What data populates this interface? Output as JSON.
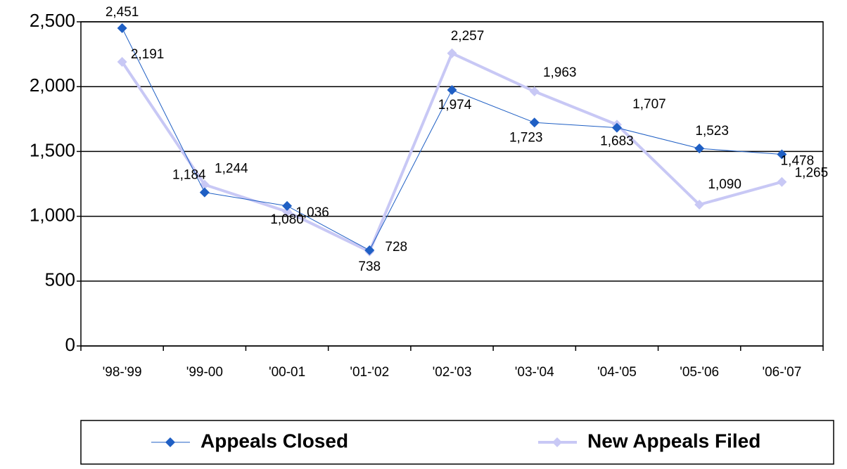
{
  "chart_data": {
    "type": "line",
    "categories": [
      "'98-'99",
      "'99-00",
      "'00-01",
      "'01-'02",
      "'02-'03",
      "'03-'04",
      "'04-'05",
      "'05-'06",
      "'06-'07"
    ],
    "series": [
      {
        "name": "Appeals Closed",
        "color": "#1f5fc4",
        "marker": "diamond",
        "values": [
          2451,
          1184,
          1080,
          738,
          1974,
          1723,
          1683,
          1523,
          1478
        ],
        "value_labels": [
          "2,451",
          "1,184",
          "1,080",
          "738",
          "1,974",
          "1,723",
          "1,683",
          "1,523",
          "1,478"
        ]
      },
      {
        "name": "New Appeals Filed",
        "color": "#c8c8f5",
        "marker": "diamond",
        "values": [
          2191,
          1244,
          1036,
          728,
          2257,
          1963,
          1707,
          1090,
          1265
        ],
        "value_labels": [
          "2,191",
          "1,244",
          "1,036",
          "728",
          "2,257",
          "1,963",
          "1,707",
          "1,090",
          "1,265"
        ]
      }
    ],
    "ylim": [
      0,
      2500
    ],
    "yticks": [
      0,
      500,
      {
        "value": 1000,
        "label": "1,000"
      },
      {
        "value": 1500,
        "label": "1,500"
      },
      {
        "value": 2000,
        "label": "2,000"
      },
      {
        "value": 2500,
        "label": "2,500"
      }
    ],
    "grid": true,
    "legend": "bottom"
  }
}
